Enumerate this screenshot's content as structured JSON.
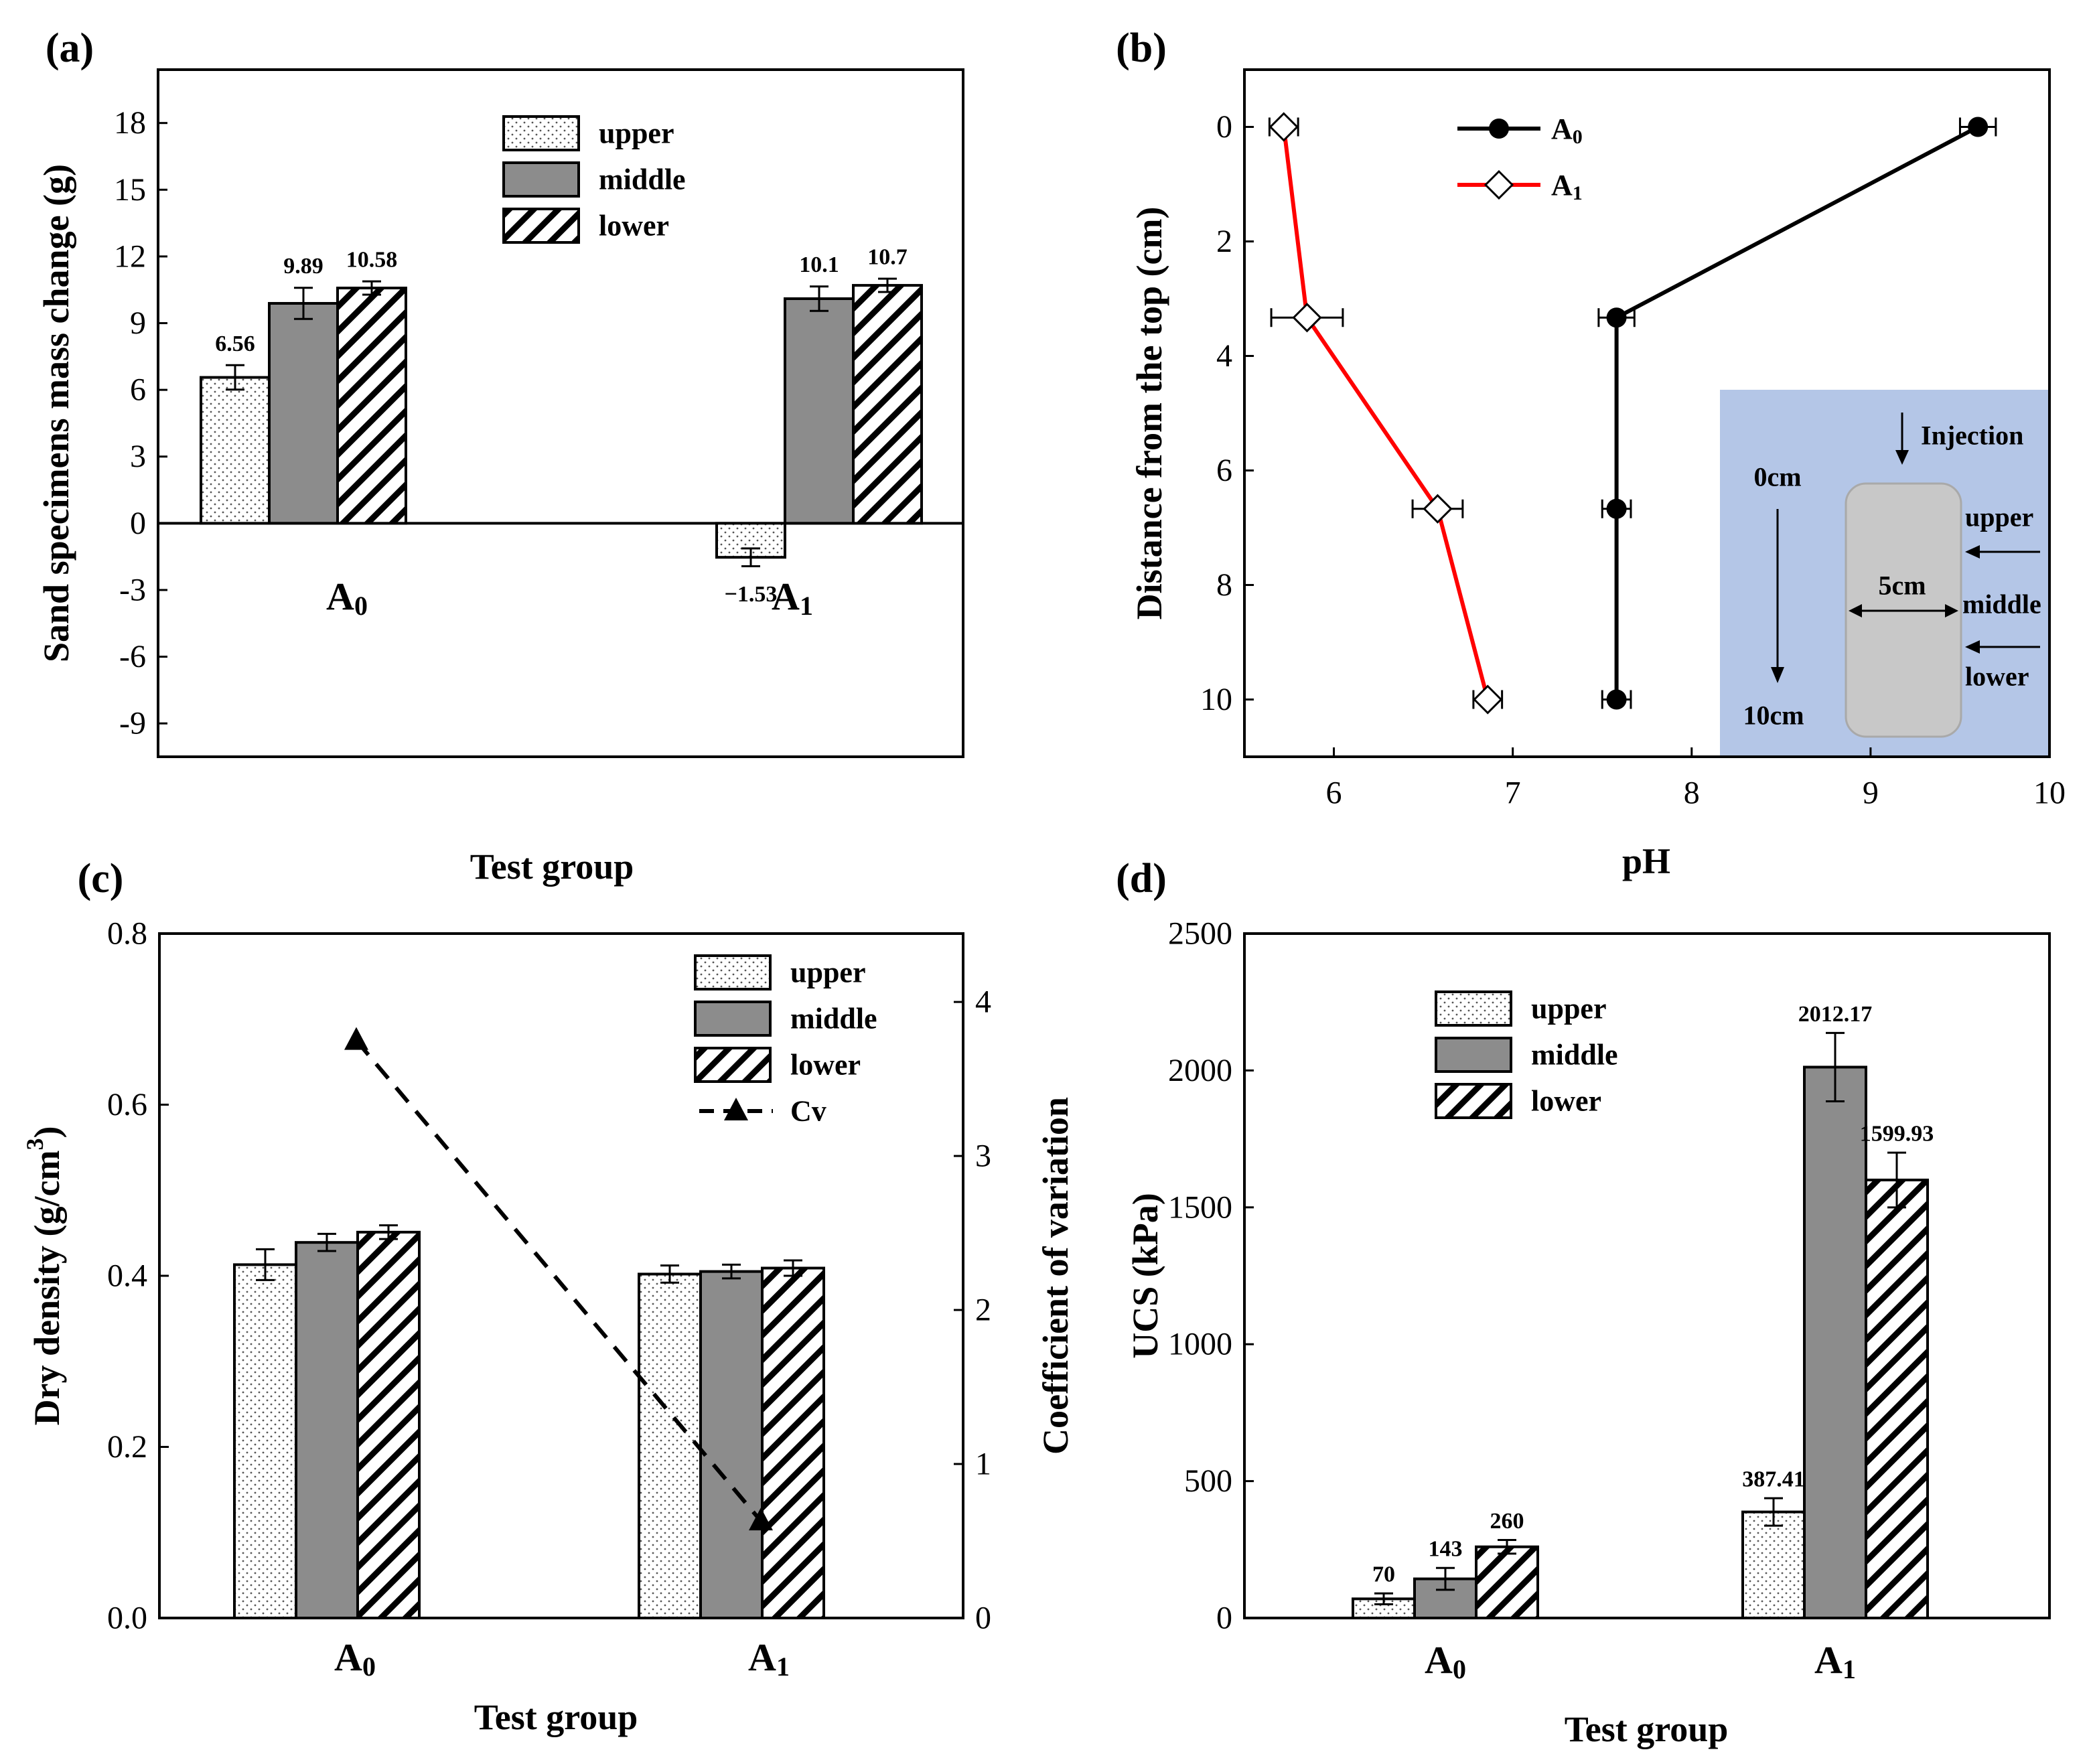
{
  "chart_data": [
    {
      "panel": "(a)",
      "type": "bar",
      "title": "",
      "xlabel": "Test group",
      "ylabel": "Sand specimens mass change (g)",
      "ylim": [
        -10.5,
        20.4
      ],
      "yticks": [
        -9,
        -6,
        -3,
        0,
        3,
        6,
        9,
        12,
        15,
        18
      ],
      "categories": [
        {
          "base": "A",
          "sub": "0"
        },
        {
          "base": "A",
          "sub": "1"
        }
      ],
      "series": [
        {
          "name": "upper",
          "pattern": "dots",
          "values": [
            6.56,
            -1.53
          ],
          "errors": [
            0.55,
            0.4
          ],
          "labels": [
            "6.56",
            "−1.53"
          ]
        },
        {
          "name": "middle",
          "pattern": "gray",
          "values": [
            9.89,
            10.1
          ],
          "errors": [
            0.7,
            0.55
          ],
          "labels": [
            "9.89",
            "10.1"
          ]
        },
        {
          "name": "lower",
          "pattern": "hatch",
          "values": [
            10.58,
            10.7
          ],
          "errors": [
            0.3,
            0.3
          ],
          "labels": [
            "10.58",
            "10.7"
          ]
        }
      ],
      "legend_position": "top-center"
    },
    {
      "panel": "(b)",
      "type": "line",
      "xlabel": "pH",
      "ylabel": "Distance from the top (cm)",
      "xlim": [
        5.5,
        10
      ],
      "ylim": [
        11,
        -1
      ],
      "xticks": [
        6,
        7,
        8,
        9,
        10
      ],
      "yticks": [
        0,
        2,
        4,
        6,
        8,
        10
      ],
      "series": [
        {
          "name": "A0",
          "base": "A",
          "sub": "0",
          "color": "#000000",
          "marker": "circle",
          "points": [
            {
              "x": 9.6,
              "y": 0,
              "xerr": 0.1
            },
            {
              "x": 7.58,
              "y": 3.33,
              "xerr": 0.1
            },
            {
              "x": 7.58,
              "y": 6.67,
              "xerr": 0.08
            },
            {
              "x": 7.58,
              "y": 10,
              "xerr": 0.08
            }
          ]
        },
        {
          "name": "A1",
          "base": "A",
          "sub": "1",
          "color": "#ff0000",
          "marker": "diamond",
          "points": [
            {
              "x": 5.72,
              "y": 0,
              "xerr": 0.08
            },
            {
              "x": 5.85,
              "y": 3.33,
              "xerr": 0.2
            },
            {
              "x": 6.58,
              "y": 6.67,
              "xerr": 0.14
            },
            {
              "x": 6.86,
              "y": 10,
              "xerr": 0.08
            }
          ]
        }
      ],
      "inset": {
        "background": "#b4c6e7",
        "labels": {
          "injection": "Injection",
          "top": "0cm",
          "bottom": "10cm",
          "diameter": "5cm",
          "upper": "upper",
          "middle": "middle",
          "lower": "lower"
        }
      },
      "legend_position": "top-center"
    },
    {
      "panel": "(c)",
      "type": "bar",
      "xlabel": "Test group",
      "ylabel": "Dry density (g/cm3)",
      "ylabel_parts": [
        "Dry density (g/cm",
        "3",
        ")"
      ],
      "ylabel_right": "Coefficient of variation",
      "ylim": [
        0,
        0.8
      ],
      "yticks": [
        0.0,
        0.2,
        0.4,
        0.6,
        0.8
      ],
      "ytick_labels": [
        "0.0",
        "0.2",
        "0.4",
        "0.6",
        "0.8"
      ],
      "ylim_right": [
        0,
        4.444
      ],
      "yticks_right": [
        0,
        1,
        2,
        3,
        4
      ],
      "categories": [
        {
          "base": "A",
          "sub": "0"
        },
        {
          "base": "A",
          "sub": "1"
        }
      ],
      "series": [
        {
          "name": "upper",
          "pattern": "dots",
          "values": [
            0.413,
            0.402
          ],
          "errors": [
            0.018,
            0.01
          ]
        },
        {
          "name": "middle",
          "pattern": "gray",
          "values": [
            0.439,
            0.405
          ],
          "errors": [
            0.01,
            0.008
          ]
        },
        {
          "name": "lower",
          "pattern": "hatch",
          "values": [
            0.451,
            0.409
          ],
          "errors": [
            0.008,
            0.009
          ]
        }
      ],
      "line_series": {
        "name": "Cv",
        "axis": "right",
        "values": [
          3.75,
          0.63
        ]
      },
      "legend_position": "top-right"
    },
    {
      "panel": "(d)",
      "type": "bar",
      "xlabel": "Test group",
      "ylabel": "UCS (kPa)",
      "ylim": [
        0,
        2500
      ],
      "yticks": [
        0,
        500,
        1000,
        1500,
        2000,
        2500
      ],
      "categories": [
        {
          "base": "A",
          "sub": "0"
        },
        {
          "base": "A",
          "sub": "1"
        }
      ],
      "series": [
        {
          "name": "upper",
          "pattern": "dots",
          "values": [
            70,
            387.41
          ],
          "errors": [
            20,
            50
          ],
          "labels": [
            "70",
            "387.41"
          ]
        },
        {
          "name": "middle",
          "pattern": "gray",
          "values": [
            143,
            2012.17
          ],
          "errors": [
            40,
            125
          ],
          "labels": [
            "143",
            "2012.17"
          ]
        },
        {
          "name": "lower",
          "pattern": "hatch",
          "values": [
            260,
            1599.93
          ],
          "errors": [
            25,
            100
          ],
          "labels": [
            "260",
            "1599.93"
          ]
        }
      ],
      "legend_position": "top-left"
    }
  ]
}
